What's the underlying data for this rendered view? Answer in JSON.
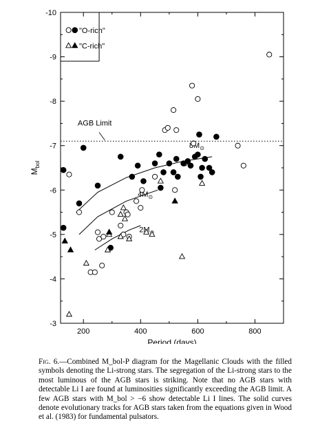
{
  "chart_data": {
    "type": "scatter",
    "xlabel": "Period (days)",
    "ylabel": "M",
    "ylabel_sub": "bol",
    "xlim": [
      120,
      900
    ],
    "ylim": [
      -3,
      -10
    ],
    "y_inverted": true,
    "x_ticks": [
      200,
      400,
      600,
      800
    ],
    "y_ticks": [
      -3,
      -4,
      -5,
      -6,
      -7,
      -8,
      -9,
      -10
    ],
    "y_tick_labels": [
      "-3",
      "-4",
      "-5",
      "-6",
      "-7",
      "-8",
      "-9",
      "-10"
    ],
    "x_tick_labels": [
      "200",
      "400",
      "600",
      "800"
    ],
    "grid": false,
    "legend_position": "top-left",
    "legend": [
      {
        "label": "\"O-rich\"",
        "markers": [
          "open-circle",
          "filled-circle"
        ]
      },
      {
        "label": "\"C-rich\"",
        "markers": [
          "open-triangle",
          "filled-triangle"
        ]
      }
    ],
    "agb_limit": {
      "label": "AGB Limit",
      "y": -7.1
    },
    "series": [
      {
        "name": "O-rich (no Li)",
        "marker": "open-circle",
        "points": [
          [
            150,
            -6.35
          ],
          [
            185,
            -5.5
          ],
          [
            225,
            -4.15
          ],
          [
            240,
            -4.15
          ],
          [
            250,
            -5.05
          ],
          [
            265,
            -4.3
          ],
          [
            255,
            -4.9
          ],
          [
            270,
            -4.95
          ],
          [
            300,
            -5.5
          ],
          [
            330,
            -5.2
          ],
          [
            340,
            -5.0
          ],
          [
            350,
            -5.5
          ],
          [
            355,
            -5.45
          ],
          [
            360,
            -4.95
          ],
          [
            385,
            -5.75
          ],
          [
            400,
            -5.6
          ],
          [
            405,
            -6.0
          ],
          [
            410,
            -6.2
          ],
          [
            450,
            -6.3
          ],
          [
            470,
            -6.05
          ],
          [
            485,
            -7.35
          ],
          [
            495,
            -7.4
          ],
          [
            515,
            -7.8
          ],
          [
            520,
            -6.0
          ],
          [
            525,
            -7.35
          ],
          [
            555,
            -6.6
          ],
          [
            580,
            -8.35
          ],
          [
            600,
            -8.05
          ],
          [
            585,
            -7.05
          ],
          [
            740,
            -7.0
          ],
          [
            760,
            -6.55
          ],
          [
            850,
            -9.05
          ]
        ]
      },
      {
        "name": "O-rich (Li)",
        "marker": "filled-circle",
        "points": [
          [
            130,
            -6.45
          ],
          [
            130,
            -5.15
          ],
          [
            185,
            -5.7
          ],
          [
            200,
            -6.95
          ],
          [
            250,
            -6.1
          ],
          [
            295,
            -4.7
          ],
          [
            330,
            -6.75
          ],
          [
            370,
            -6.3
          ],
          [
            390,
            -6.55
          ],
          [
            410,
            -6.2
          ],
          [
            450,
            -6.6
          ],
          [
            465,
            -6.8
          ],
          [
            470,
            -6.05
          ],
          [
            480,
            -6.4
          ],
          [
            500,
            -6.6
          ],
          [
            515,
            -6.4
          ],
          [
            525,
            -6.7
          ],
          [
            530,
            -6.3
          ],
          [
            550,
            -6.6
          ],
          [
            565,
            -6.65
          ],
          [
            575,
            -6.55
          ],
          [
            590,
            -6.75
          ],
          [
            600,
            -6.8
          ],
          [
            605,
            -7.25
          ],
          [
            610,
            -6.3
          ],
          [
            615,
            -6.5
          ],
          [
            625,
            -6.7
          ],
          [
            640,
            -6.5
          ],
          [
            650,
            -6.4
          ],
          [
            665,
            -7.2
          ]
        ]
      },
      {
        "name": "C-rich (no Li)",
        "marker": "open-triangle",
        "points": [
          [
            150,
            -3.2
          ],
          [
            210,
            -4.35
          ],
          [
            285,
            -4.65
          ],
          [
            290,
            -5.0
          ],
          [
            330,
            -5.45
          ],
          [
            330,
            -4.95
          ],
          [
            340,
            -5.6
          ],
          [
            345,
            -5.35
          ],
          [
            360,
            -4.9
          ],
          [
            420,
            -5.05
          ],
          [
            440,
            -5.0
          ],
          [
            470,
            -6.2
          ],
          [
            545,
            -4.5
          ],
          [
            615,
            -6.15
          ]
        ]
      },
      {
        "name": "C-rich (Li)",
        "marker": "filled-triangle",
        "points": [
          [
            135,
            -4.85
          ],
          [
            155,
            -4.65
          ],
          [
            290,
            -5.05
          ],
          [
            520,
            -5.75
          ]
        ]
      }
    ],
    "tracks": [
      {
        "label": "8M",
        "x": [
          175,
          250,
          350,
          450,
          550,
          650
        ],
        "y": [
          -5.5,
          -5.95,
          -6.28,
          -6.5,
          -6.65,
          -6.75
        ]
      },
      {
        "label": "4M",
        "x": [
          185,
          250,
          350,
          460
        ],
        "y": [
          -5.0,
          -5.4,
          -5.75,
          -6.0
        ]
      },
      {
        "label": "2M",
        "x": [
          240,
          300,
          360,
          400
        ],
        "y": [
          -4.65,
          -4.9,
          -5.1,
          -5.2
        ]
      }
    ],
    "track_label_sub": "⊙"
  },
  "caption": {
    "fig_label": "Fig. 6.",
    "text": "—Combined M_bol-P diagram for the Magellanic Clouds with the filled symbols denoting the Li-strong stars. The segregation of the Li-strong stars to the most luminous of the AGB stars is striking. Note that no AGB stars with detectable Li I are found at luminosities significantly exceeding the AGB limit. A few AGB stars with M_bol > −6 show detectable Li I lines. The solid curves denote evolutionary tracks for AGB stars taken from the equations given in Wood et al. (1983) for fundamental pulsators."
  }
}
